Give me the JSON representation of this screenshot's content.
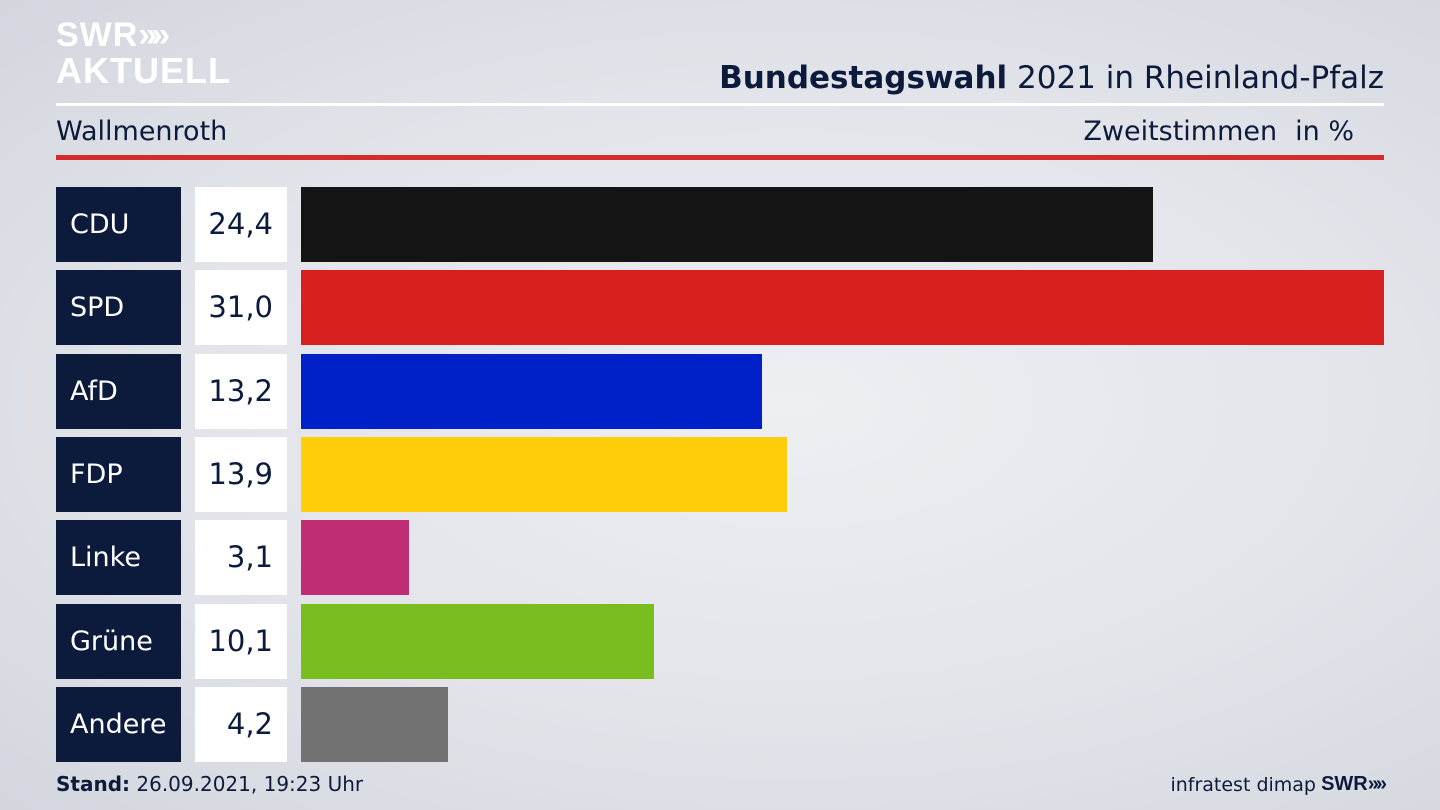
{
  "brand": {
    "logo_line1": "SWR",
    "logo_line2": "AKTUELL",
    "logo_chevrons": "»",
    "footer_logo": "SWR",
    "footer_chevrons": "»"
  },
  "header": {
    "title_bold": "Bundestagswahl",
    "title_rest": " 2021 in Rheinland-Pfalz",
    "place": "Wallmenroth",
    "measure": "Zweitstimmen",
    "unit": "in %"
  },
  "footer": {
    "stand_label": "Stand:",
    "stand_value": " 26.09.2021, 19:23 Uhr",
    "source": "infratest dimap"
  },
  "colors": {
    "navy": "#0c1b3c",
    "rule_red": "#d52b2b"
  },
  "chart_data": {
    "type": "bar",
    "orientation": "horizontal",
    "categories": [
      "CDU",
      "SPD",
      "AfD",
      "FDP",
      "Linke",
      "Grüne",
      "Andere"
    ],
    "values": [
      24.4,
      31.0,
      13.2,
      13.9,
      3.1,
      10.1,
      4.2
    ],
    "value_labels": [
      "24,4",
      "31,0",
      "13,2",
      "13,9",
      "3,1",
      "10,1",
      "4,2"
    ],
    "colors": [
      "#141414",
      "#d7201f",
      "#0020c9",
      "#ffcd0a",
      "#c12d75",
      "#7abd1f",
      "#727272"
    ],
    "title": "Bundestagswahl 2021 in Rheinland-Pfalz",
    "xlabel": "in %",
    "xlim": [
      0,
      31.0
    ],
    "grid": false,
    "legend": "none"
  }
}
